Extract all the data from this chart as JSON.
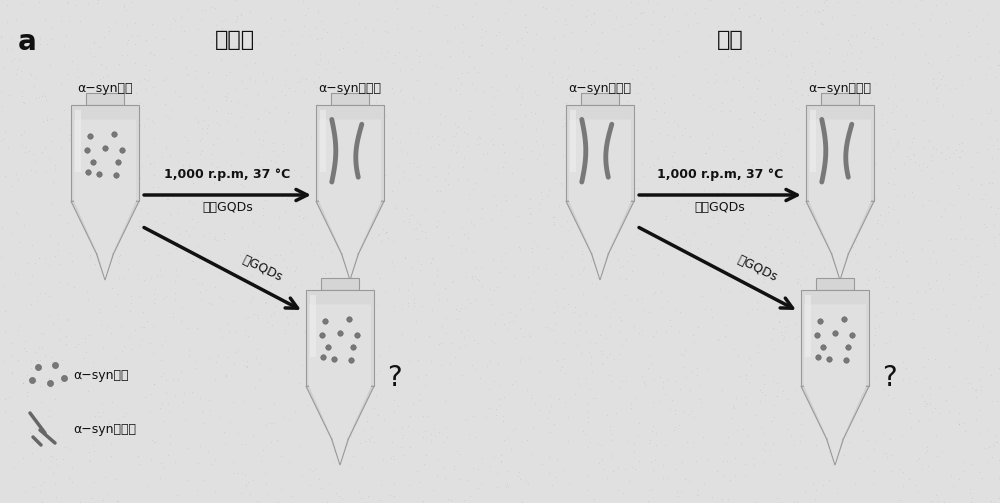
{
  "bg_color": "#e0e0e0",
  "speckle_color": "#c8c8c8",
  "panel_label": "a",
  "left_title": "纤维化",
  "right_title": "分解",
  "condition_text": "1,000 r.p.m, 37 °C",
  "no_gqd_text": "没有GQDs",
  "with_gqd_text": "有GQDs",
  "question_mark": "?",
  "left_col1_label": "α−syn单体",
  "left_col2_label": "α−syn原纤维",
  "right_col1_label": "α−syn原纤维",
  "right_col2_label": "α−syn原纤维",
  "legend_dot_label": "α−syn单体",
  "legend_fiber_label": "α−syn原纤维",
  "dot_color": "#777777",
  "fiber_color": "#666666",
  "arrow_color": "#111111",
  "text_color": "#111111",
  "tube_outer": "#c8c8c8",
  "tube_inner_light": "#e8e8e8",
  "tube_inner_dark": "#b0b0b0",
  "tube_liquid": "#d5d5d5"
}
